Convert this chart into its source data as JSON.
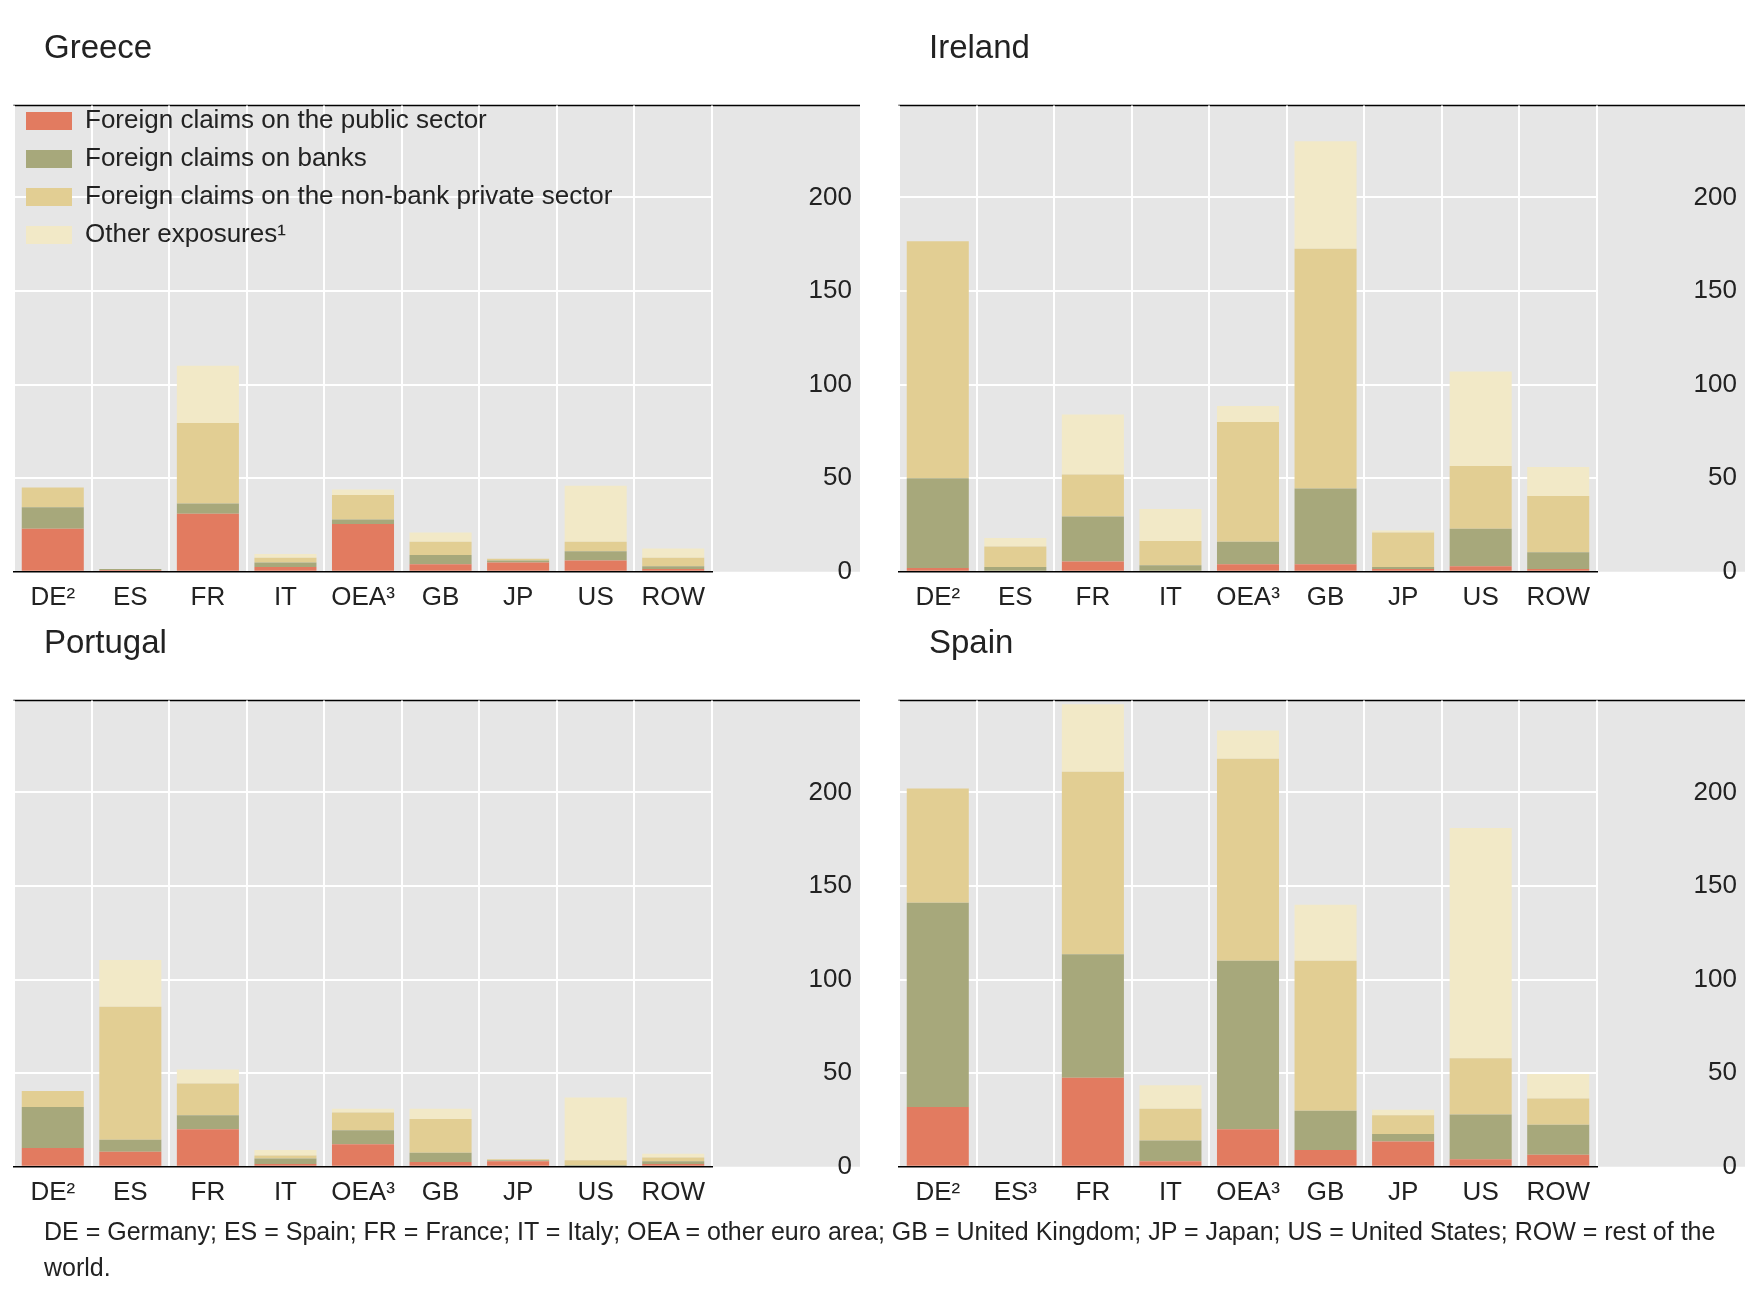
{
  "chart_data": [
    {
      "type": "bar",
      "title": "Greece",
      "stacked": true,
      "grid": true,
      "legend": "top left",
      "ylim": [
        0,
        249
      ],
      "yticks": [
        0,
        50,
        100,
        150,
        200
      ],
      "categories": [
        "DE²",
        "ES",
        "FR",
        "IT",
        "OEA³",
        "GB",
        "JP",
        "US",
        "ROW"
      ],
      "series": [
        {
          "name": "Foreign claims on the public sector",
          "color": "#e27b60",
          "values": [
            23,
            1,
            31,
            2.5,
            25.5,
            4,
            5,
            6,
            1.5
          ]
        },
        {
          "name": "Foreign claims on banks",
          "color": "#a7a87b",
          "values": [
            11.5,
            0.5,
            5.5,
            2.5,
            2.5,
            5,
            1,
            5,
            1.5
          ]
        },
        {
          "name": "Foreign claims on the non-bank private sector",
          "color": "#e2ce93",
          "values": [
            10.5,
            null,
            43,
            2.5,
            13,
            7,
            1,
            5,
            4.5
          ]
        },
        {
          "name": "Other exposures¹",
          "color": "#f2e9c7",
          "values": [
            0,
            0,
            30.5,
            2,
            3,
            5,
            null,
            30,
            5
          ]
        }
      ]
    },
    {
      "type": "bar",
      "title": "Ireland",
      "stacked": true,
      "grid": true,
      "ylim": [
        0,
        249
      ],
      "yticks": [
        0,
        50,
        100,
        150,
        200
      ],
      "categories": [
        "DE²",
        "ES",
        "FR",
        "IT",
        "OEA³",
        "GB",
        "JP",
        "US",
        "ROW"
      ],
      "series": [
        {
          "color": "#e27b60",
          "values": [
            2,
            0,
            5.5,
            0,
            4,
            4,
            1.5,
            3,
            1.5
          ]
        },
        {
          "color": "#a7a87b",
          "values": [
            48,
            2.5,
            24,
            3.5,
            12,
            40.5,
            1,
            20,
            9
          ]
        },
        {
          "color": "#e2ce93",
          "values": [
            126.5,
            11,
            22.5,
            13,
            64,
            128,
            18.5,
            33.5,
            30
          ]
        },
        {
          "color": "#f2e9c7",
          "values": [
            0,
            4.5,
            32,
            17,
            8.5,
            57.5,
            1,
            50.5,
            15.5
          ]
        }
      ]
    },
    {
      "type": "bar",
      "title": "Portugal",
      "stacked": true,
      "grid": true,
      "ylim": [
        0,
        249
      ],
      "yticks": [
        0,
        50,
        100,
        150,
        200
      ],
      "categories": [
        "DE²",
        "ES",
        "FR",
        "IT",
        "OEA³",
        "GB",
        "JP",
        "US",
        "ROW"
      ],
      "annotations": [
        "DE = Germany; ES = Spain; FR = France; IT = Italy; OEA = other euro area; GB = United Kingdom; JP = Japan; US = United States; ROW = rest of the world."
      ],
      "series": [
        {
          "color": "#e27b60",
          "values": [
            10,
            8,
            20,
            1.5,
            12,
            2.5,
            3,
            0.5,
            1.5
          ]
        },
        {
          "color": "#a7a87b",
          "values": [
            22,
            6.5,
            7.5,
            3,
            7.5,
            5,
            0.5,
            0.5,
            1.5
          ]
        },
        {
          "color": "#e2ce93",
          "values": [
            8.5,
            71,
            17,
            1.5,
            9.5,
            18,
            0.5,
            2.5,
            2
          ]
        },
        {
          "color": "#f2e9c7",
          "values": [
            0,
            25,
            7.5,
            3,
            2,
            5.5,
            0,
            33.5,
            2
          ]
        }
      ]
    },
    {
      "type": "bar",
      "title": "Spain",
      "stacked": true,
      "grid": true,
      "ylim": [
        0,
        249
      ],
      "yticks": [
        0,
        50,
        100,
        150,
        200
      ],
      "categories": [
        "DE²",
        "ES³",
        "FR",
        "IT",
        "OEA³",
        "GB",
        "JP",
        "US",
        "ROW"
      ],
      "series": [
        {
          "color": "#e27b60",
          "values": [
            32,
            null,
            47.5,
            3,
            20,
            9,
            13.5,
            4,
            6.5
          ]
        },
        {
          "color": "#a7a87b",
          "values": [
            109,
            null,
            66,
            11,
            90,
            21,
            4,
            24,
            16
          ]
        },
        {
          "color": "#e2ce93",
          "values": [
            61,
            null,
            97.5,
            17,
            108,
            80,
            10,
            30,
            14
          ]
        },
        {
          "color": "#f2e9c7",
          "values": [
            0,
            null,
            36,
            12.5,
            15,
            30,
            3,
            123,
            13
          ]
        }
      ]
    }
  ]
}
